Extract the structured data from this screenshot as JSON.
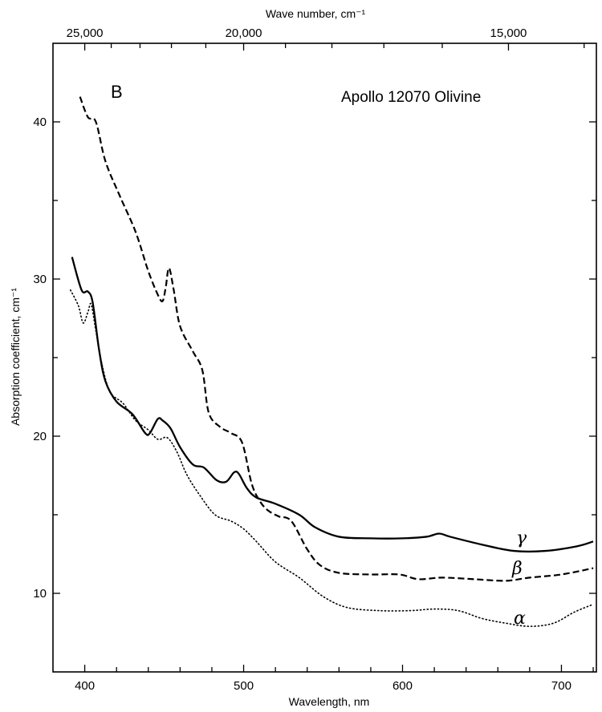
{
  "chart_data": {
    "type": "line",
    "title": "Apollo 12070 Olivine",
    "panel_label": "B",
    "xlabel": "Wavelength, nm",
    "ylabel": "Absorption coefficient, cm⁻¹",
    "top_xlabel": "Wave number, cm⁻¹",
    "xlim": [
      380,
      722
    ],
    "ylim": [
      5,
      45
    ],
    "x_ticks": [
      400,
      500,
      600,
      700
    ],
    "y_ticks": [
      10,
      20,
      30,
      40
    ],
    "top_ticks": [
      {
        "label": "25,000",
        "wavenumber": 25000
      },
      {
        "label": "20,000",
        "wavenumber": 20000
      },
      {
        "label": "15,000",
        "wavenumber": 15000
      }
    ],
    "grid": false,
    "series": [
      {
        "name": "γ",
        "style": "solid",
        "points": [
          [
            392,
            31.4
          ],
          [
            398,
            29.3
          ],
          [
            402,
            29.2
          ],
          [
            405,
            28.5
          ],
          [
            409,
            25.5
          ],
          [
            413,
            23.5
          ],
          [
            420,
            22.2
          ],
          [
            430,
            21.4
          ],
          [
            438,
            20.2
          ],
          [
            441,
            20.2
          ],
          [
            446,
            21.1
          ],
          [
            449,
            21.0
          ],
          [
            454,
            20.5
          ],
          [
            460,
            19.3
          ],
          [
            468,
            18.2
          ],
          [
            475,
            18.0
          ],
          [
            483,
            17.2
          ],
          [
            489,
            17.1
          ],
          [
            494,
            17.7
          ],
          [
            497,
            17.6
          ],
          [
            502,
            16.7
          ],
          [
            508,
            16.1
          ],
          [
            520,
            15.7
          ],
          [
            535,
            15.0
          ],
          [
            545,
            14.2
          ],
          [
            560,
            13.6
          ],
          [
            580,
            13.5
          ],
          [
            600,
            13.5
          ],
          [
            615,
            13.6
          ],
          [
            623,
            13.8
          ],
          [
            630,
            13.6
          ],
          [
            650,
            13.1
          ],
          [
            670,
            12.7
          ],
          [
            690,
            12.7
          ],
          [
            710,
            13.0
          ],
          [
            720,
            13.3
          ]
        ]
      },
      {
        "name": "β",
        "style": "dashed",
        "points": [
          [
            397,
            41.6
          ],
          [
            402,
            40.3
          ],
          [
            407,
            40.0
          ],
          [
            413,
            37.5
          ],
          [
            422,
            35.3
          ],
          [
            432,
            33.0
          ],
          [
            440,
            30.5
          ],
          [
            446,
            29.0
          ],
          [
            449,
            28.6
          ],
          [
            451,
            29.5
          ],
          [
            453,
            30.7
          ],
          [
            456,
            29.3
          ],
          [
            460,
            27.0
          ],
          [
            468,
            25.4
          ],
          [
            474,
            24.2
          ],
          [
            478,
            21.5
          ],
          [
            485,
            20.6
          ],
          [
            492,
            20.2
          ],
          [
            499,
            19.6
          ],
          [
            505,
            17.0
          ],
          [
            510,
            15.9
          ],
          [
            515,
            15.3
          ],
          [
            522,
            14.9
          ],
          [
            530,
            14.6
          ],
          [
            540,
            12.8
          ],
          [
            548,
            11.8
          ],
          [
            560,
            11.3
          ],
          [
            580,
            11.2
          ],
          [
            598,
            11.2
          ],
          [
            610,
            10.9
          ],
          [
            625,
            11.0
          ],
          [
            645,
            10.9
          ],
          [
            665,
            10.8
          ],
          [
            680,
            11.0
          ],
          [
            700,
            11.2
          ],
          [
            720,
            11.6
          ]
        ]
      },
      {
        "name": "α",
        "style": "dotted",
        "points": [
          [
            391,
            29.3
          ],
          [
            396,
            28.3
          ],
          [
            399,
            27.2
          ],
          [
            402,
            27.9
          ],
          [
            404,
            28.4
          ],
          [
            407,
            26.7
          ],
          [
            411,
            24.5
          ],
          [
            416,
            22.8
          ],
          [
            424,
            22.1
          ],
          [
            432,
            21.0
          ],
          [
            440,
            20.4
          ],
          [
            446,
            19.8
          ],
          [
            452,
            19.9
          ],
          [
            458,
            19.0
          ],
          [
            464,
            17.6
          ],
          [
            472,
            16.3
          ],
          [
            482,
            15.0
          ],
          [
            492,
            14.6
          ],
          [
            500,
            14.1
          ],
          [
            508,
            13.3
          ],
          [
            520,
            12.0
          ],
          [
            535,
            11.0
          ],
          [
            550,
            9.8
          ],
          [
            565,
            9.1
          ],
          [
            585,
            8.9
          ],
          [
            605,
            8.9
          ],
          [
            620,
            9.0
          ],
          [
            635,
            8.9
          ],
          [
            650,
            8.4
          ],
          [
            665,
            8.1
          ],
          [
            680,
            7.9
          ],
          [
            695,
            8.1
          ],
          [
            708,
            8.8
          ],
          [
            720,
            9.3
          ]
        ]
      }
    ]
  }
}
